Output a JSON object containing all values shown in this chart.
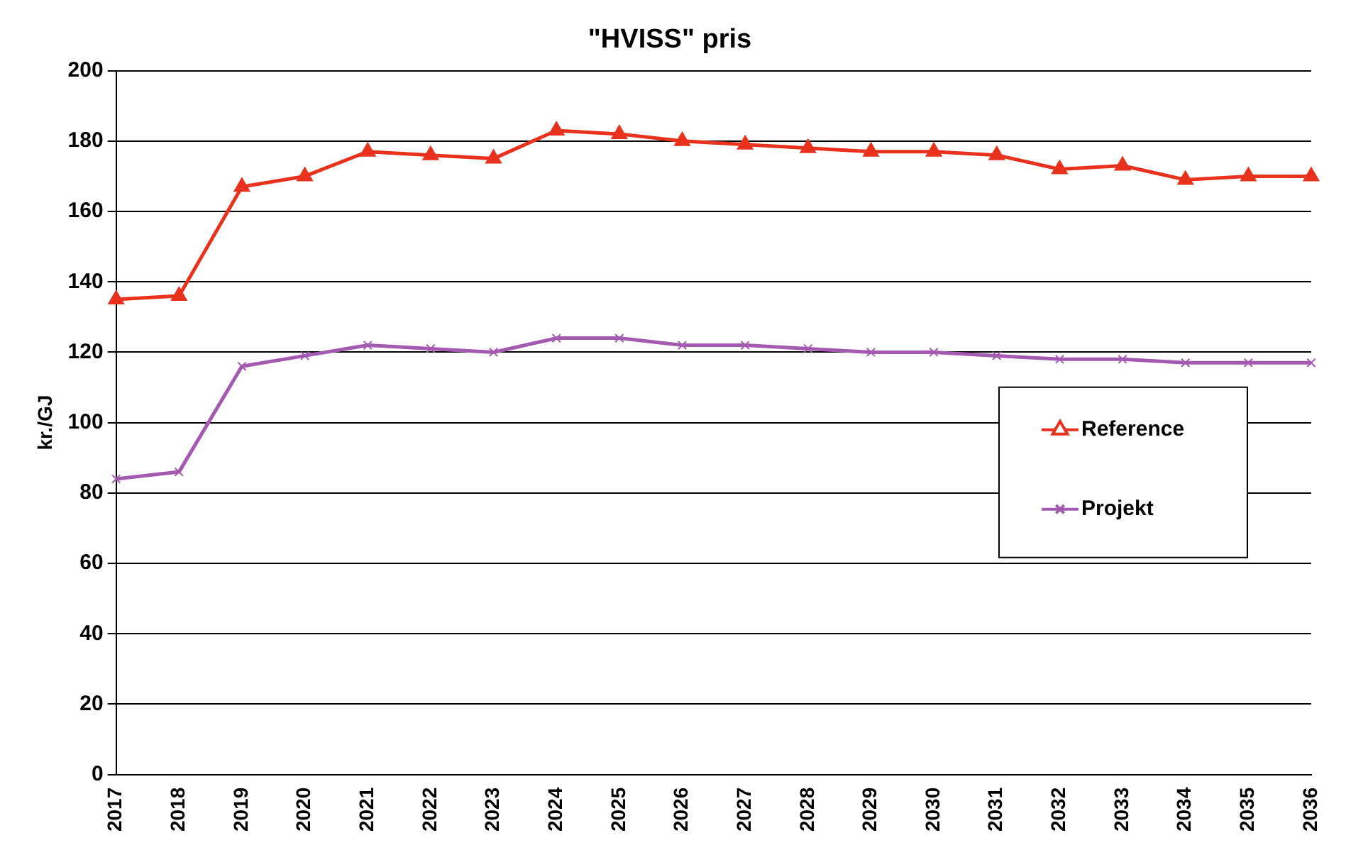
{
  "chart_data": {
    "type": "line",
    "title": "\"HVISS\" pris",
    "ylabel": "kr./GJ",
    "categories": [
      "2017",
      "2018",
      "2019",
      "2020",
      "2021",
      "2022",
      "2023",
      "2024",
      "2025",
      "2026",
      "2027",
      "2028",
      "2029",
      "2030",
      "2031",
      "2032",
      "2033",
      "2034",
      "2035",
      "2036"
    ],
    "series": [
      {
        "name": "Reference",
        "color": "#e8321e",
        "marker": "triangle",
        "values": [
          135,
          136,
          167,
          170,
          177,
          176,
          175,
          183,
          182,
          180,
          179,
          178,
          177,
          177,
          176,
          172,
          173,
          169,
          170,
          170
        ]
      },
      {
        "name": "Projekt",
        "color": "#a35ab0",
        "marker": "cross",
        "values": [
          84,
          86,
          116,
          119,
          122,
          121,
          120,
          124,
          124,
          122,
          122,
          121,
          120,
          120,
          119,
          118,
          118,
          117,
          117,
          117
        ]
      }
    ],
    "ylim": [
      0,
      200
    ],
    "yticks": [
      0,
      20,
      40,
      60,
      80,
      100,
      120,
      140,
      160,
      180,
      200
    ],
    "grid": "y",
    "legend": "right",
    "line_style": "solid"
  }
}
